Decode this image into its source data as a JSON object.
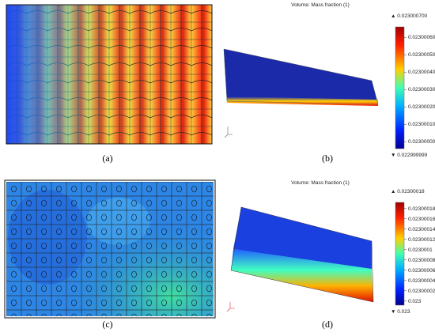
{
  "panels": [
    {
      "label": "(a)"
    },
    {
      "label": "(b)",
      "colorbar": {
        "title": "Volume: Mass fraction (1)",
        "max": "▲ 0.023000700",
        "ticks": [
          "0.023000600",
          "0.023000500",
          "0.023000400",
          "0.023000300",
          "0.023000200",
          "0.023000100",
          "0.023000000"
        ],
        "min": "▼ 0.022999999"
      }
    },
    {
      "label": "(c)"
    },
    {
      "label": "(d)",
      "colorbar": {
        "title": "Volume: Mass fraction (1)",
        "max": "▲ 0.02300018",
        "ticks": [
          "0.02300018",
          "0.02300016",
          "0.02300014",
          "0.02300012",
          "0.0230001",
          "0.02300008",
          "0.02300006",
          "0.02300004",
          "0.02300002",
          "0.023"
        ],
        "min": "▼ 0.023"
      }
    }
  ]
}
